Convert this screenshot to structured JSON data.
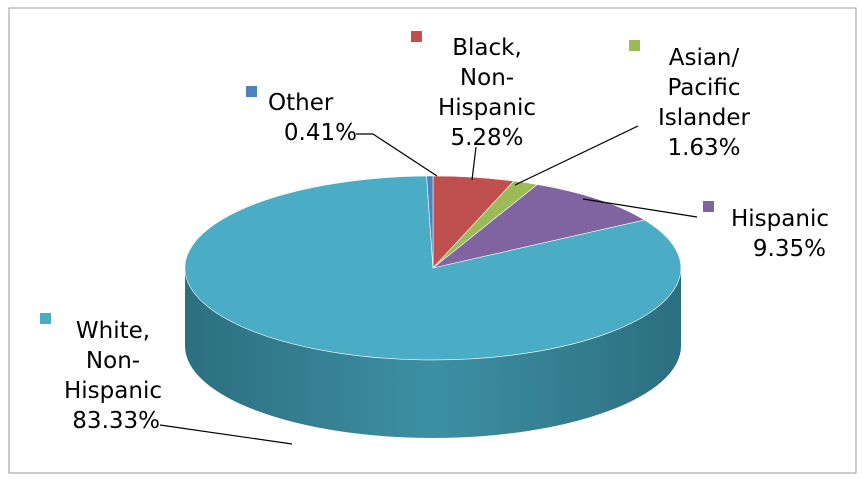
{
  "chart_data": {
    "type": "pie",
    "title": "",
    "style": "3d",
    "legend": "labels beside slices with leader lines",
    "slices": [
      {
        "name_lines": [
          "White,",
          "Non-",
          "Hispanic"
        ],
        "value": 83.33,
        "value_label": "83.33%",
        "color": "#4BACC6"
      },
      {
        "name_lines": [
          "Black,",
          "Non-",
          "Hispanic"
        ],
        "value": 5.28,
        "value_label": "5.28%",
        "color": "#C0504D"
      },
      {
        "name_lines": [
          "Asian/",
          "Pacific",
          "Islander"
        ],
        "value": 1.63,
        "value_label": "1.63%",
        "color": "#9BBB59"
      },
      {
        "name_lines": [
          "Hispanic"
        ],
        "value": 9.35,
        "value_label": "9.35%",
        "color": "#8064A2"
      },
      {
        "name_lines": [
          "Other"
        ],
        "value": 0.41,
        "value_label": "0.41%",
        "color": "#4F81BD"
      }
    ]
  }
}
